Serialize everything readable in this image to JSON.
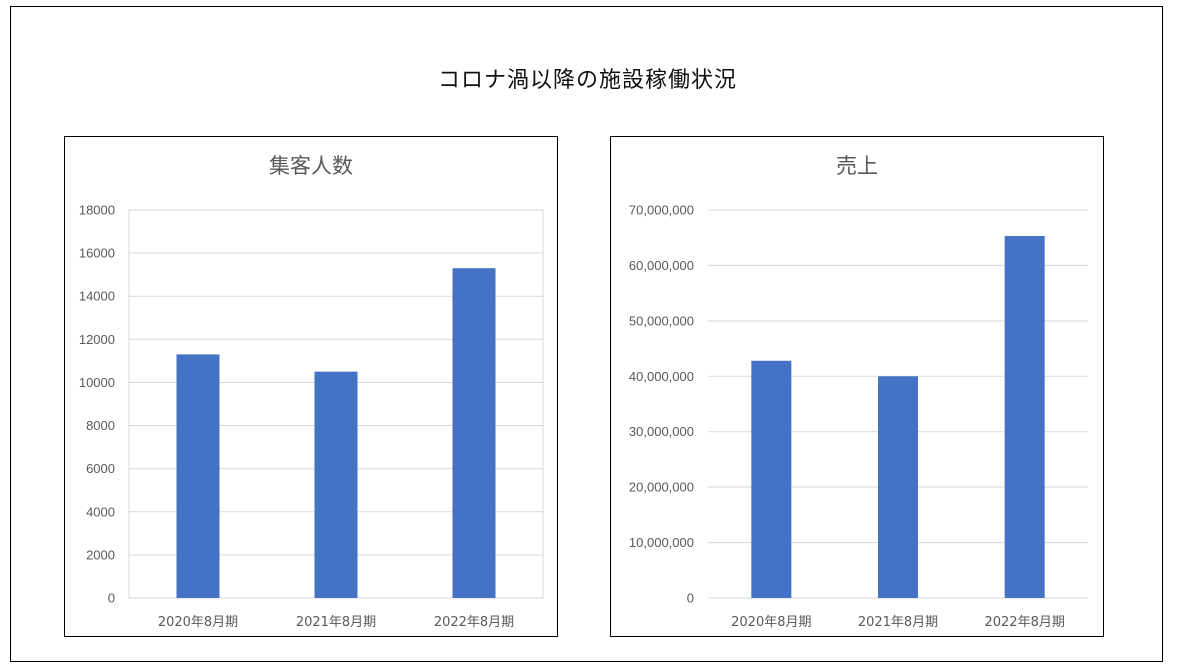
{
  "page": {
    "title": "コロナ渦以降の施設稼働状況"
  },
  "chart_data": [
    {
      "type": "bar",
      "title": "集客人数",
      "xlabel": "",
      "ylabel": "",
      "categories": [
        "2020年8月期",
        "2021年8月期",
        "2022年8月期"
      ],
      "values": [
        11300,
        10500,
        15300
      ],
      "ylim": [
        0,
        18000
      ],
      "yticks": [
        0,
        2000,
        4000,
        6000,
        8000,
        10000,
        12000,
        14000,
        16000,
        18000
      ],
      "ytick_labels": [
        "0",
        "2000",
        "4000",
        "6000",
        "8000",
        "10000",
        "12000",
        "14000",
        "16000",
        "18000"
      ],
      "grid": true,
      "legend": "none",
      "bar_color": "#4472C4",
      "grid_color": "#D9D9D9"
    },
    {
      "type": "bar",
      "title": "売上",
      "xlabel": "",
      "ylabel": "",
      "categories": [
        "2020年8月期",
        "2021年8月期",
        "2022年8月期"
      ],
      "values": [
        42800000,
        40000000,
        65300000
      ],
      "ylim": [
        0,
        70000000
      ],
      "yticks": [
        0,
        10000000,
        20000000,
        30000000,
        40000000,
        50000000,
        60000000,
        70000000
      ],
      "ytick_labels": [
        "0",
        "10,000,000",
        "20,000,000",
        "30,000,000",
        "40,000,000",
        "50,000,000",
        "60,000,000",
        "70,000,000"
      ],
      "grid": true,
      "legend": "none",
      "bar_color": "#4472C4",
      "grid_color": "#D9D9D9"
    }
  ]
}
